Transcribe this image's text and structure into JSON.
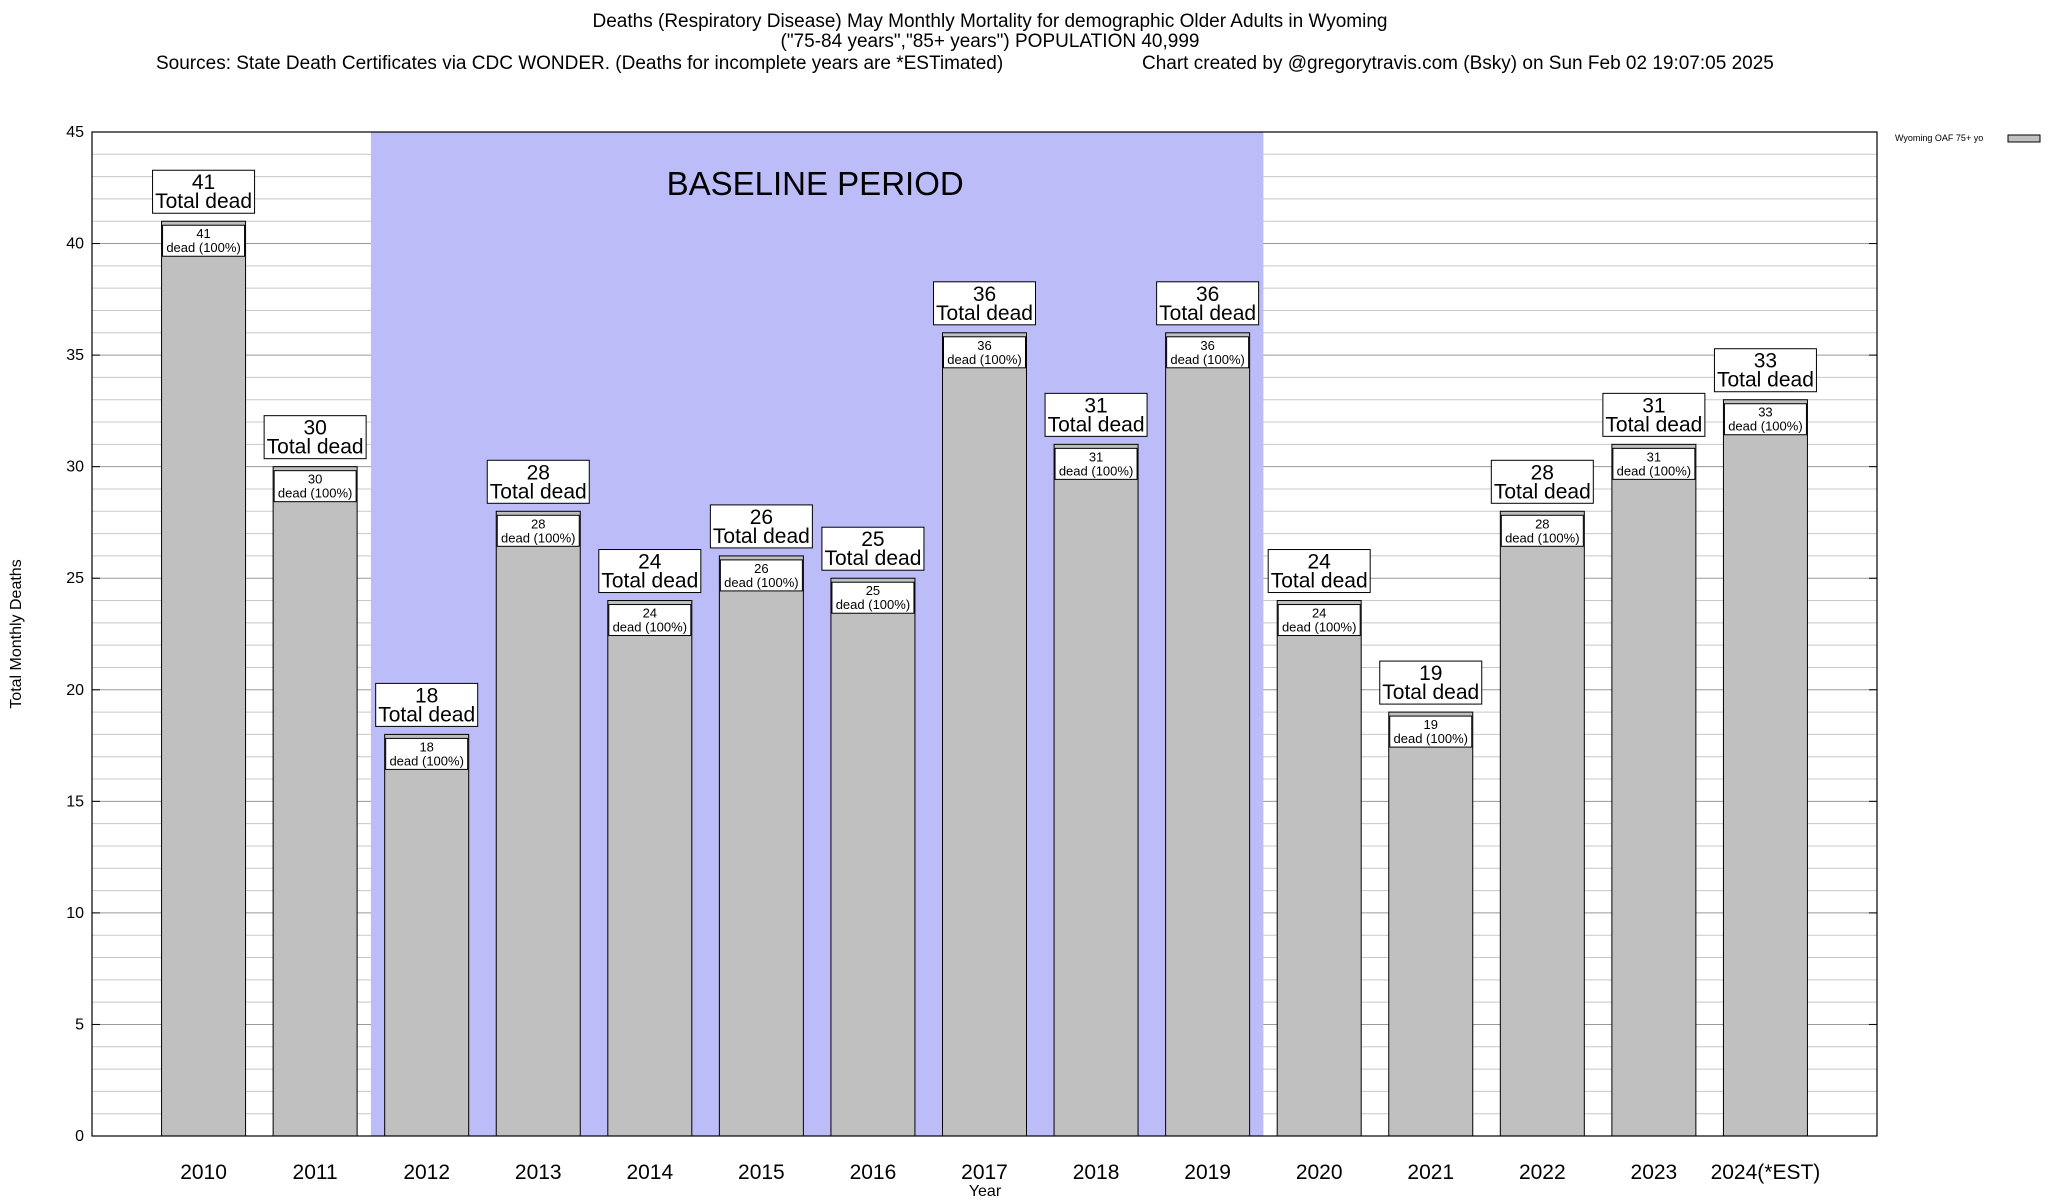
{
  "header": {
    "title_line1": "Deaths (Respiratory Disease) May Monthly Mortality for demographic Older Adults in Wyoming",
    "title_line2": "(\"75-84 years\",\"85+ years\") POPULATION 40,999",
    "sources": "Sources: State Death Certificates via CDC WONDER. (Deaths for incomplete years are *ESTimated)",
    "credit": "Chart created by @gregorytravis.com (Bsky) on Sun Feb 02 19:07:05 2025"
  },
  "chart_data": {
    "type": "bar",
    "categories": [
      "2010",
      "2011",
      "2012",
      "2013",
      "2014",
      "2015",
      "2016",
      "2017",
      "2018",
      "2019",
      "2020",
      "2021",
      "2022",
      "2023",
      "2024(*EST)"
    ],
    "series": [
      {
        "name": "Wyoming OAF 75+ yo",
        "values": [
          41,
          30,
          18,
          28,
          24,
          26,
          25,
          36,
          31,
          36,
          24,
          19,
          28,
          31,
          33
        ]
      }
    ],
    "bar_label_top": "Total dead",
    "bar_label_inner": "dead (100%)",
    "xlabel": "Year",
    "ylabel": "Total Monthly Deaths",
    "ylim": [
      0,
      45
    ],
    "yticks": [
      0,
      5,
      10,
      15,
      20,
      25,
      30,
      35,
      40,
      45
    ],
    "minor_gridline_step": 1,
    "shaded_region": {
      "label": "BASELINE PERIOD",
      "from_category": "2012",
      "to_category": "2019"
    },
    "colors": {
      "bar": "#c0c0c0",
      "shade": "#bcbcf8",
      "grid": "#c8c8c8"
    },
    "legend": {
      "placement": "top-right outside plot"
    },
    "grid": true
  }
}
